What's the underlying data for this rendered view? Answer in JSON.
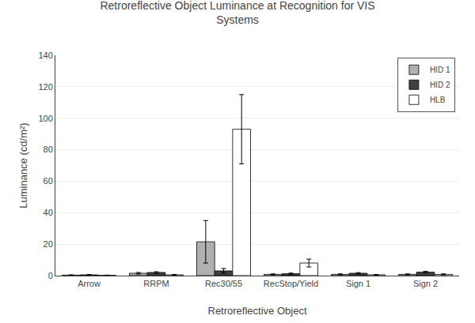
{
  "chart_data": {
    "type": "bar",
    "title": "Retroreflective Object Luminance at Recognition for VIS\nSystems",
    "x_label": "Retroreflective Object",
    "y_label": "Luminance (cd/m²)",
    "categories": [
      "Arrow",
      "RRPM",
      "Rec30/55",
      "RecStop/Yield",
      "Sign 1",
      "Sign 2"
    ],
    "series": [
      {
        "name": "HID 1",
        "color": "#b0b0b0",
        "values": [
          0.3,
          1.5,
          21.5,
          0.8,
          0.8,
          0.8
        ],
        "errors": [
          0.2,
          0.5,
          13.5,
          0.3,
          0.3,
          0.3
        ]
      },
      {
        "name": "HID 2",
        "color": "#404040",
        "values": [
          0.5,
          2.0,
          3.0,
          1.2,
          1.5,
          2.2
        ],
        "errors": [
          0.2,
          0.5,
          1.5,
          0.4,
          0.4,
          0.5
        ]
      },
      {
        "name": "HLB",
        "color": "#ffffff",
        "values": [
          0.2,
          0.5,
          93.0,
          8.0,
          0.5,
          0.8
        ],
        "errors": [
          0.1,
          0.2,
          22.0,
          2.5,
          0.2,
          0.3
        ]
      }
    ],
    "ylim": [
      0,
      140
    ],
    "yticks": [
      0,
      20,
      40,
      60,
      80,
      100,
      120,
      140
    ],
    "grid": true,
    "legend": "upper right"
  }
}
